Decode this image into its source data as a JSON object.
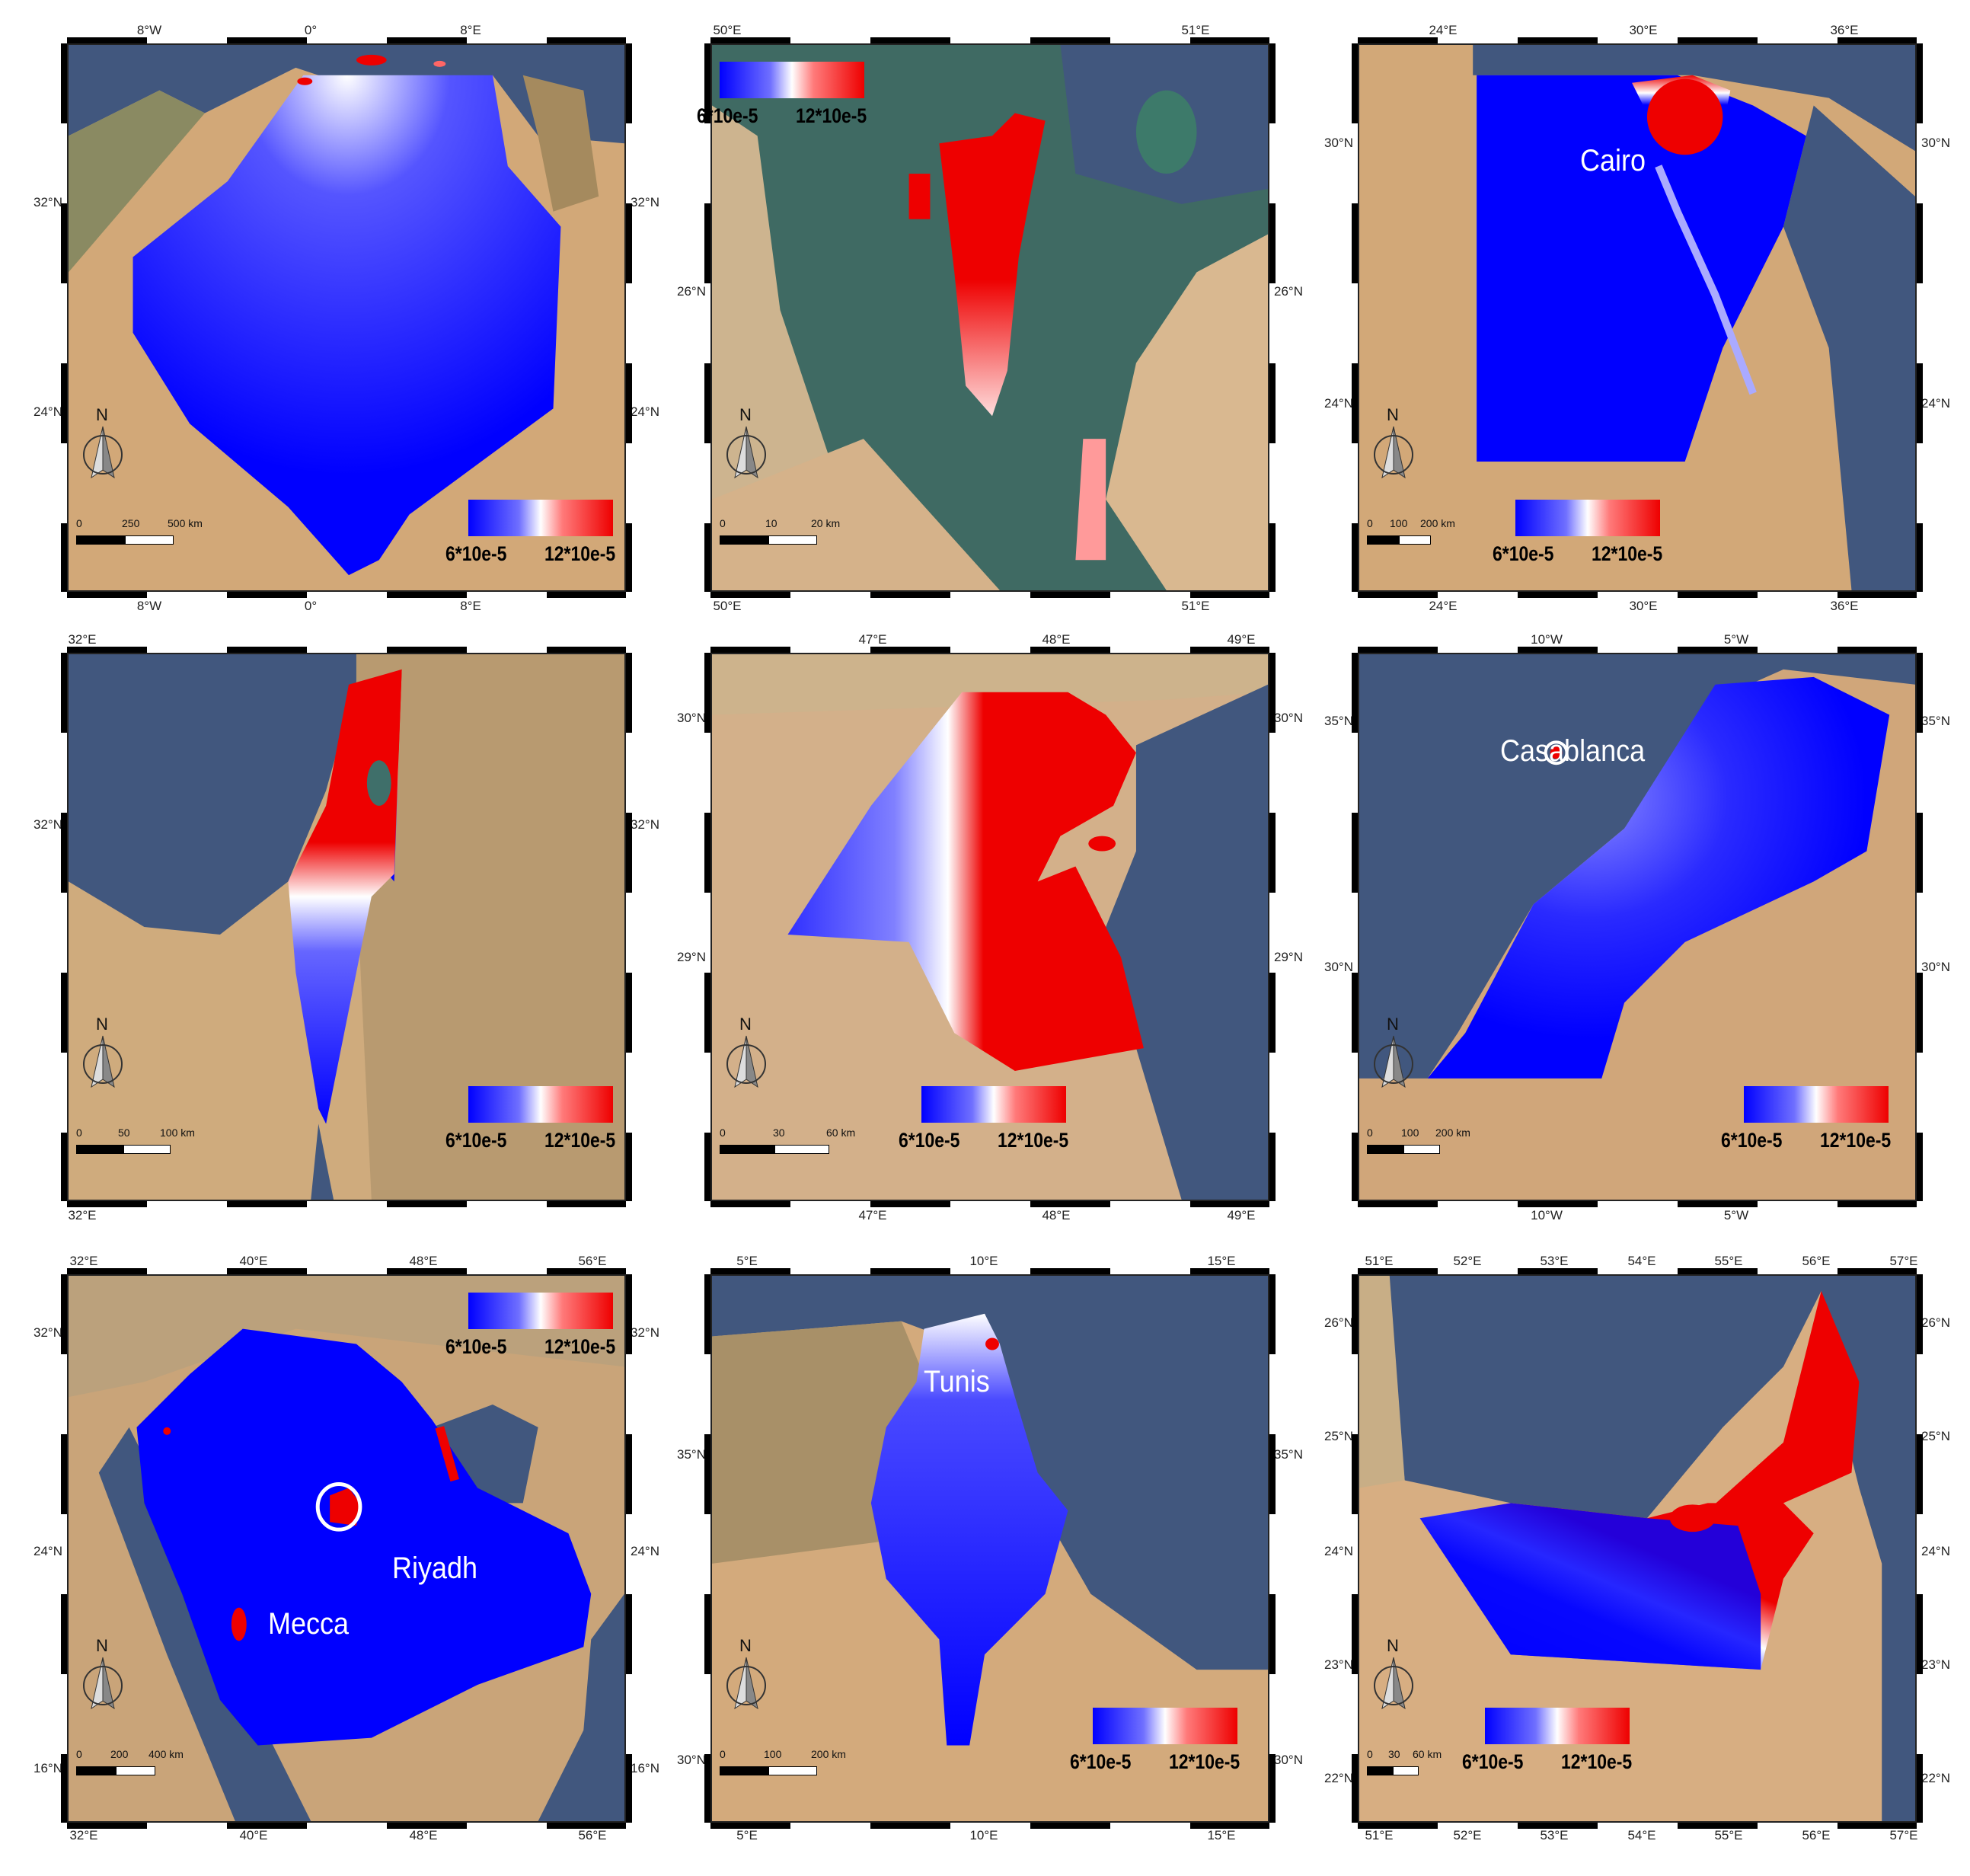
{
  "colors": {
    "low": "#0000ff",
    "mid": "#ffffff",
    "high": "#ee0000",
    "sea": "#41577e",
    "desert": "#d4a877"
  },
  "panels": [
    {
      "id": "algeria",
      "top": [
        "8°W",
        "0°",
        "8°E"
      ],
      "bottom": [
        "8°W",
        "0°",
        "8°E"
      ],
      "left": [
        "32°N",
        "24°N"
      ],
      "right": [
        "32°N",
        "24°N"
      ],
      "legend": {
        "low": "6*10e-5",
        "high": "12*10e-5"
      },
      "scale": [
        "0",
        "250",
        "500 km"
      ],
      "city": "",
      "north": "N"
    },
    {
      "id": "bahrain",
      "top": [
        "50°E",
        "51°E"
      ],
      "bottom": [
        "50°E",
        "51°E"
      ],
      "left": [
        "26°N"
      ],
      "right": [
        "26°N"
      ],
      "legend": {
        "low": "6*10e-5",
        "high": "12*10e-5"
      },
      "scale": [
        "0",
        "10",
        "20 km"
      ],
      "city": "",
      "north": "N"
    },
    {
      "id": "egypt",
      "top": [
        "24°E",
        "30°E",
        "36°E"
      ],
      "bottom": [
        "24°E",
        "30°E",
        "36°E"
      ],
      "left": [
        "30°N",
        "24°N"
      ],
      "right": [
        "30°N",
        "24°N"
      ],
      "legend": {
        "low": "6*10e-5",
        "high": "12*10e-5"
      },
      "scale": [
        "0",
        "100",
        "200 km"
      ],
      "city": "Cairo",
      "north": "N"
    },
    {
      "id": "israel",
      "top": [
        "32°E"
      ],
      "bottom": [
        "32°E"
      ],
      "left": [
        "32°N"
      ],
      "right": [
        "32°N"
      ],
      "legend": {
        "low": "6*10e-5",
        "high": "12*10e-5"
      },
      "scale": [
        "0",
        "50",
        "100 km"
      ],
      "city": "",
      "north": "N"
    },
    {
      "id": "kuwait",
      "top": [
        "47°E",
        "48°E",
        "49°E"
      ],
      "bottom": [
        "47°E",
        "48°E",
        "49°E"
      ],
      "left": [
        "30°N",
        "29°N"
      ],
      "right": [
        "30°N",
        "29°N"
      ],
      "legend": {
        "low": "6*10e-5",
        "high": "12*10e-5"
      },
      "scale": [
        "0",
        "30",
        "60 km"
      ],
      "city": "",
      "north": "N"
    },
    {
      "id": "morocco",
      "top": [
        "10°W",
        "5°W"
      ],
      "bottom": [
        "10°W",
        "5°W"
      ],
      "left": [
        "35°N",
        "30°N"
      ],
      "right": [
        "35°N",
        "30°N"
      ],
      "legend": {
        "low": "6*10e-5",
        "high": "12*10e-5"
      },
      "scale": [
        "0",
        "100",
        "200 km"
      ],
      "city": "Casablanca",
      "north": "N"
    },
    {
      "id": "saudi",
      "top": [
        "32°E",
        "40°E",
        "48°E",
        "56°E"
      ],
      "bottom": [
        "32°E",
        "40°E",
        "48°E",
        "56°E"
      ],
      "left": [
        "32°N",
        "24°N",
        "16°N"
      ],
      "right": [
        "32°N",
        "24°N",
        "16°N"
      ],
      "legend": {
        "low": "6*10e-5",
        "high": "12*10e-5"
      },
      "scale": [
        "0",
        "200",
        "400 km"
      ],
      "city": "Riyadh",
      "city2": "Mecca",
      "north": "N"
    },
    {
      "id": "tunisia",
      "top": [
        "5°E",
        "10°E",
        "15°E"
      ],
      "bottom": [
        "5°E",
        "10°E",
        "15°E"
      ],
      "left": [
        "35°N",
        "30°N"
      ],
      "right": [
        "35°N",
        "30°N"
      ],
      "legend": {
        "low": "6*10e-5",
        "high": "12*10e-5"
      },
      "scale": [
        "0",
        "100",
        "200 km"
      ],
      "city": "Tunis",
      "north": "N"
    },
    {
      "id": "uae",
      "top": [
        "51°E",
        "52°E",
        "53°E",
        "54°E",
        "55°E",
        "56°E",
        "57°E"
      ],
      "bottom": [
        "51°E",
        "52°E",
        "53°E",
        "54°E",
        "55°E",
        "56°E",
        "57°E"
      ],
      "left": [
        "26°N",
        "25°N",
        "24°N",
        "23°N",
        "22°N"
      ],
      "right": [
        "26°N",
        "25°N",
        "24°N",
        "23°N",
        "22°N"
      ],
      "legend": {
        "low": "6*10e-5",
        "high": "12*10e-5"
      },
      "scale": [
        "0",
        "30",
        "60 km"
      ],
      "city": "",
      "north": "N"
    }
  ]
}
